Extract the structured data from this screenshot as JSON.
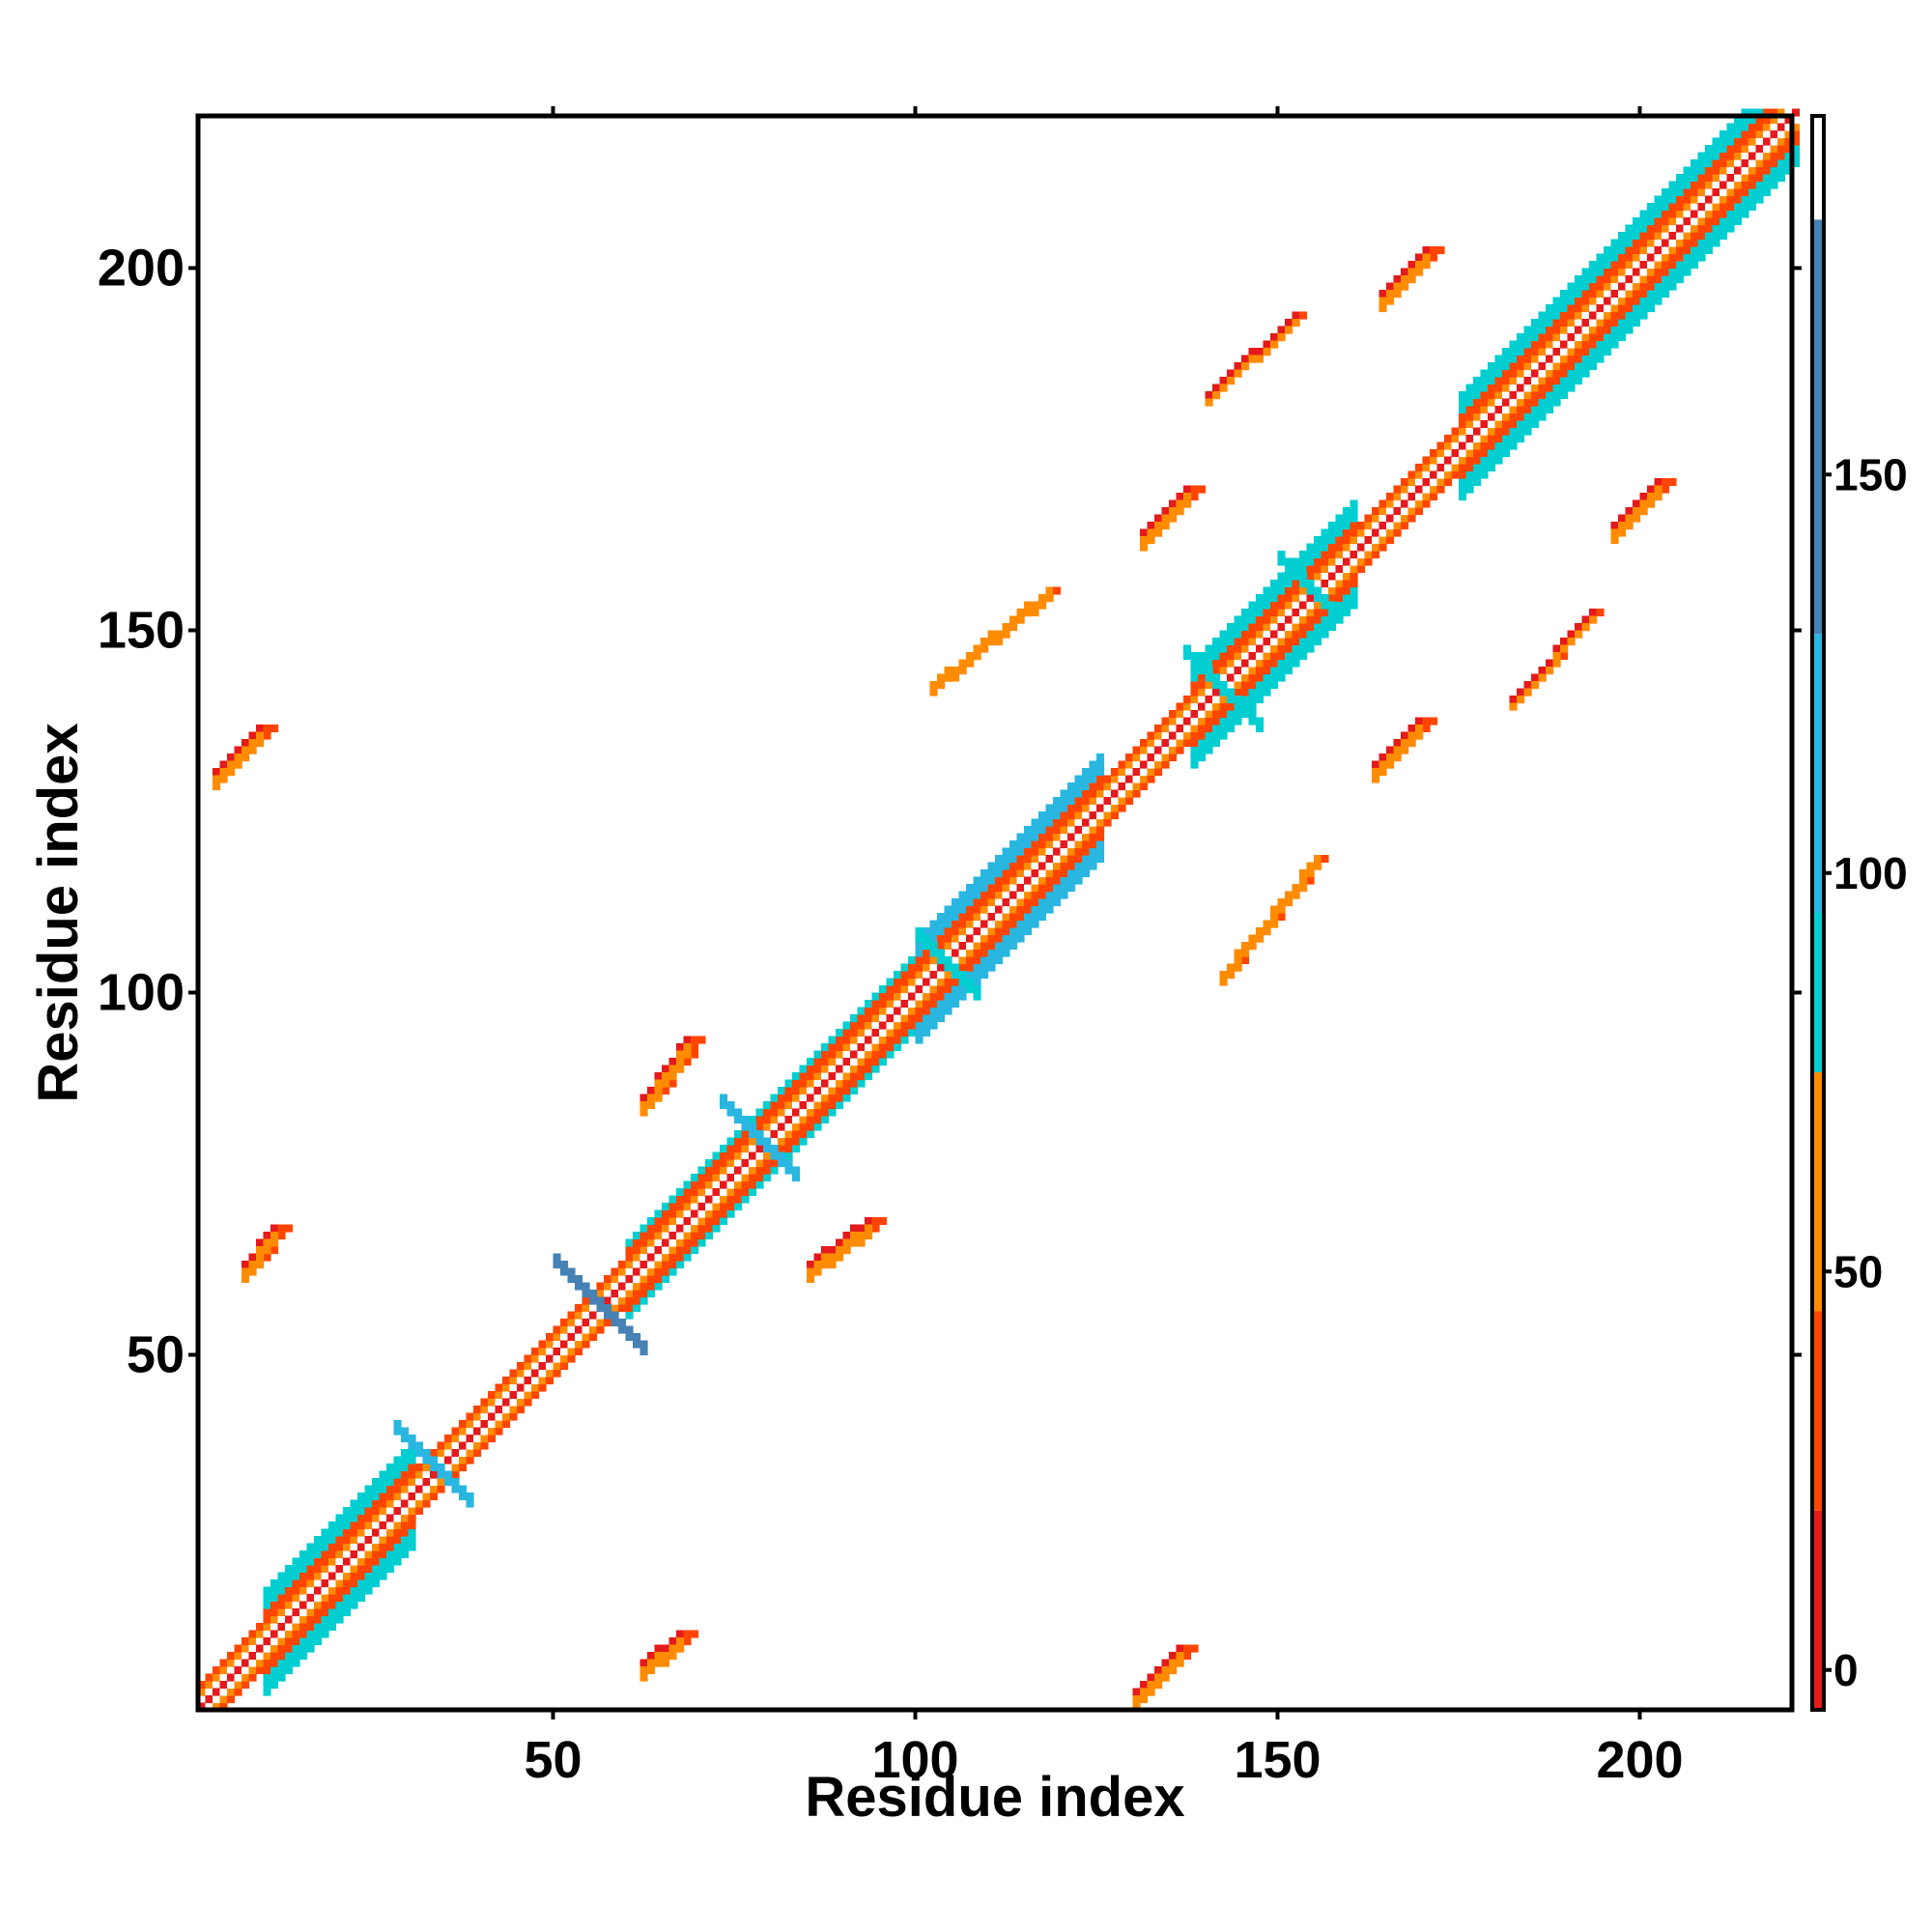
{
  "chart_data": {
    "type": "heatmap",
    "title": "",
    "xlabel": "Residue index",
    "ylabel": "Residue index",
    "xlim": [
      1,
      221
    ],
    "ylim": [
      1,
      221
    ],
    "xticks": [
      50,
      100,
      150,
      200
    ],
    "yticks": [
      50,
      100,
      150,
      200
    ],
    "colorbar": {
      "ticks": [
        0,
        50,
        100,
        150
      ],
      "range": [
        -5,
        195
      ],
      "bands": [
        {
          "from": -5,
          "to": 20,
          "color": "#e41a1c"
        },
        {
          "from": 20,
          "to": 45,
          "color": "#ff4500"
        },
        {
          "from": 45,
          "to": 75,
          "color": "#ff8c00"
        },
        {
          "from": 75,
          "to": 95,
          "color": "#00ced1"
        },
        {
          "from": 95,
          "to": 130,
          "color": "#29b6e0"
        },
        {
          "from": 130,
          "to": 182,
          "color": "#4682b4"
        },
        {
          "from": 182,
          "to": 195,
          "color": "#ffffff"
        }
      ]
    },
    "grid": false,
    "diagonal": {
      "from": 1,
      "to": 221,
      "width_residues": 4
    },
    "regions": [
      {
        "type": "diag",
        "x": [
          1,
          14
        ],
        "dy": 0,
        "w": 3,
        "color": "#e41a1c"
      },
      {
        "type": "diag",
        "x": [
          10,
          30
        ],
        "dy": 1,
        "w": 7,
        "color": "#00ced1"
      },
      {
        "type": "diag",
        "x": [
          30,
          50
        ],
        "dy": 1,
        "w": 3,
        "color": "#ff8c00"
      },
      {
        "type": "diag",
        "x": [
          50,
          62
        ],
        "dy": 0,
        "w": 3,
        "color": "#ff4500"
      },
      {
        "type": "diag",
        "x": [
          60,
          100
        ],
        "dy": 1,
        "w": 5,
        "color": "#00ced1"
      },
      {
        "type": "diag",
        "x": [
          100,
          125
        ],
        "dy": 1,
        "w": 7,
        "color": "#29b6e0"
      },
      {
        "type": "diag",
        "x": [
          125,
          138
        ],
        "dy": 0,
        "w": 3,
        "color": "#e41a1c"
      },
      {
        "type": "diag",
        "x": [
          138,
          160
        ],
        "dy": 1,
        "w": 7,
        "color": "#00ced1"
      },
      {
        "type": "diag",
        "x": [
          160,
          175
        ],
        "dy": 0,
        "w": 3,
        "color": "#e41a1c"
      },
      {
        "type": "diag",
        "x": [
          175,
          221
        ],
        "dy": 1,
        "w": 7,
        "color": "#00ced1"
      },
      {
        "type": "cross",
        "cx": 33,
        "cy": 34,
        "size": 5,
        "color": "#29b6e0"
      },
      {
        "type": "cross",
        "cx": 56,
        "cy": 56,
        "size": 6,
        "color": "#4682b4"
      },
      {
        "type": "cross",
        "cx": 78,
        "cy": 79,
        "size": 5,
        "color": "#29b6e0"
      },
      {
        "type": "cross",
        "cx": 104,
        "cy": 103,
        "size": 4,
        "color": "#00ced1"
      },
      {
        "type": "cross",
        "cx": 142,
        "cy": 141,
        "size": 5,
        "color": "#00ced1"
      },
      {
        "type": "cross",
        "cx": 154,
        "cy": 155,
        "size": 4,
        "color": "#00ced1"
      },
      {
        "type": "anti",
        "x0": 7,
        "y0": 62,
        "x1": 11,
        "y1": 67,
        "w": 2,
        "color": "#e41a1c"
      },
      {
        "type": "anti",
        "x0": 62,
        "y0": 7,
        "x1": 67,
        "y1": 11,
        "w": 2,
        "color": "#e41a1c"
      },
      {
        "type": "anti",
        "x0": 3,
        "y0": 130,
        "x1": 9,
        "y1": 136,
        "w": 2,
        "color": "#e41a1c"
      },
      {
        "type": "anti",
        "x0": 130,
        "y0": 3,
        "x1": 136,
        "y1": 9,
        "w": 2,
        "color": "#e41a1c"
      },
      {
        "type": "anti",
        "x0": 62,
        "y0": 85,
        "x1": 68,
        "y1": 93,
        "w": 2,
        "color": "#e41a1c"
      },
      {
        "type": "anti",
        "x0": 85,
        "y0": 62,
        "x1": 93,
        "y1": 68,
        "w": 2,
        "color": "#e41a1c"
      },
      {
        "type": "anti",
        "x0": 131,
        "y0": 163,
        "x1": 137,
        "y1": 169,
        "w": 2,
        "color": "#e41a1c"
      },
      {
        "type": "anti",
        "x0": 163,
        "y0": 131,
        "x1": 169,
        "y1": 137,
        "w": 2,
        "color": "#e41a1c"
      },
      {
        "type": "anti",
        "x0": 164,
        "y0": 196,
        "x1": 170,
        "y1": 202,
        "w": 2,
        "color": "#e41a1c"
      },
      {
        "type": "anti",
        "x0": 196,
        "y0": 164,
        "x1": 202,
        "y1": 170,
        "w": 2,
        "color": "#e41a1c"
      },
      {
        "type": "anti",
        "x0": 102,
        "y0": 142,
        "x1": 118,
        "y1": 155,
        "w": 1,
        "color": "#ff8c00"
      },
      {
        "type": "anti",
        "x0": 142,
        "y0": 102,
        "x1": 155,
        "y1": 118,
        "w": 1,
        "color": "#ff8c00"
      },
      {
        "type": "anti",
        "x0": 140,
        "y0": 182,
        "x1": 152,
        "y1": 193,
        "w": 1,
        "color": "#e41a1c"
      },
      {
        "type": "anti",
        "x0": 182,
        "y0": 140,
        "x1": 193,
        "y1": 152,
        "w": 1,
        "color": "#e41a1c"
      }
    ]
  }
}
